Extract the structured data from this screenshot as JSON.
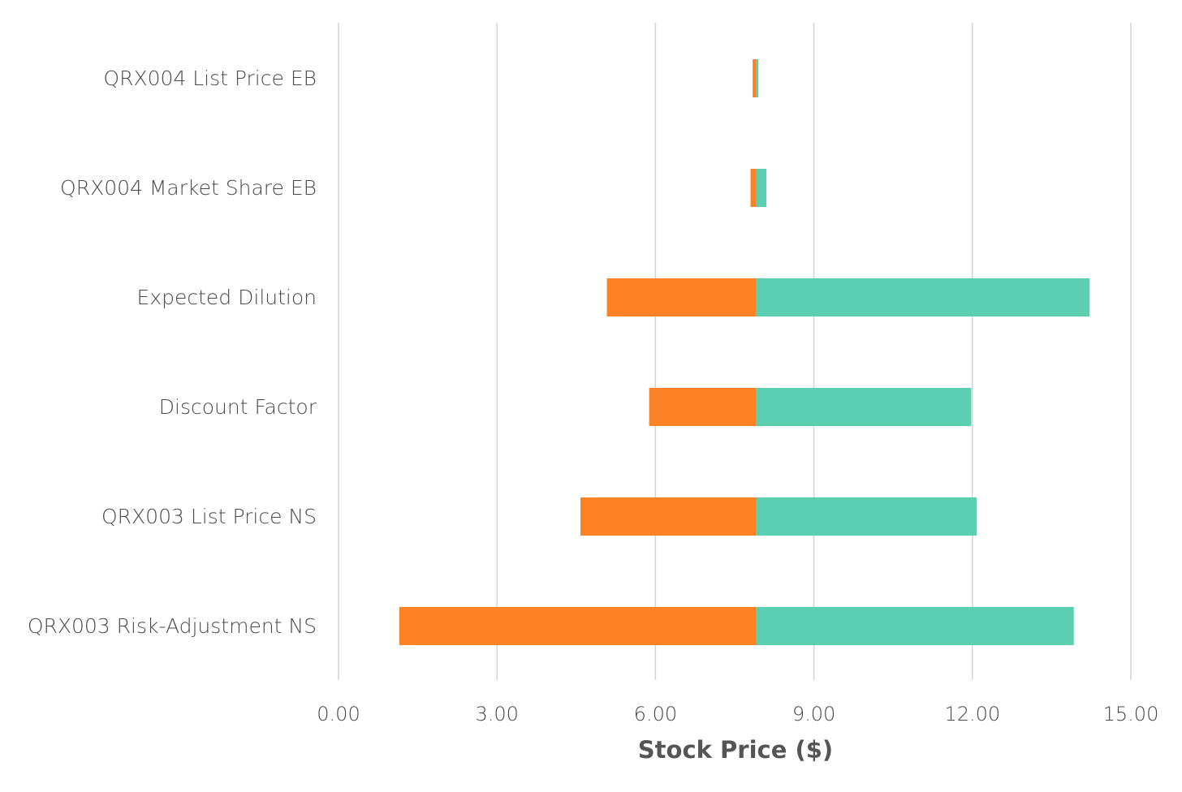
{
  "chart_data": {
    "type": "bar",
    "orientation": "horizontal",
    "style": "tornado",
    "base_value": 7.9,
    "categories": [
      "QRX004 List Price EB",
      "QRX004 Market Share EB",
      "Expected Dilution",
      "Discount Factor",
      "QRX003 List Price NS",
      "QRX003 Risk-Adjustment NS"
    ],
    "series": [
      {
        "color": "#fd8224",
        "values": [
          7.84,
          7.8,
          5.08,
          5.88,
          4.58,
          1.15
        ]
      },
      {
        "color": "#5ccfb1",
        "values": [
          7.95,
          8.1,
          14.22,
          11.98,
          12.08,
          13.92
        ]
      }
    ],
    "xlabel": "Stock Price ($)",
    "ylabel": "",
    "xlim": [
      0,
      15
    ],
    "xticks": [
      "0.00",
      "3.00",
      "6.00",
      "9.00",
      "12.00",
      "15.00"
    ],
    "grid": true,
    "legend": "none"
  }
}
